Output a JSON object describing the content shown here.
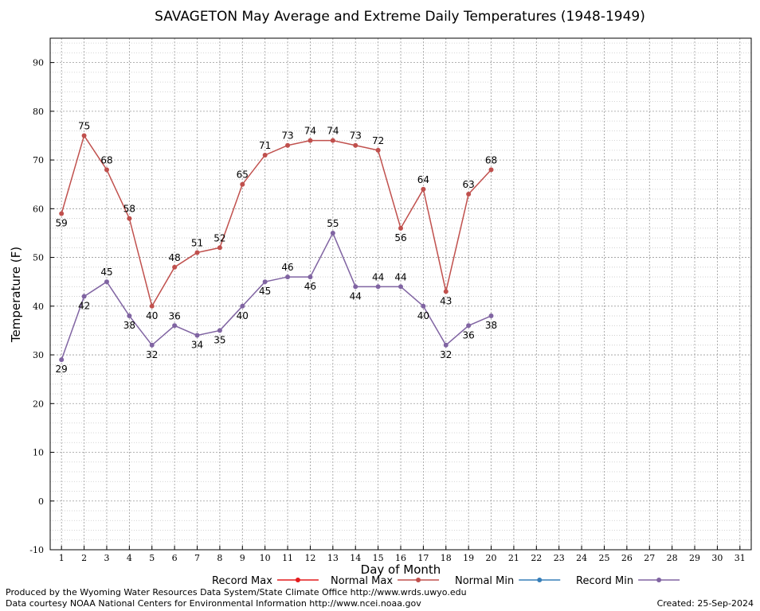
{
  "chart_data": {
    "type": "line",
    "title": "SAVAGETON May Average and Extreme Daily Temperatures (1948-1949)",
    "xlabel": "Day of Month",
    "ylabel": "Temperature (F)",
    "xlim": [
      0.5,
      31.5
    ],
    "ylim": [
      -10,
      95
    ],
    "x_ticks": [
      1,
      2,
      3,
      4,
      5,
      6,
      7,
      8,
      9,
      10,
      11,
      12,
      13,
      14,
      15,
      16,
      17,
      18,
      19,
      20,
      21,
      22,
      23,
      24,
      25,
      26,
      27,
      28,
      29,
      30,
      31
    ],
    "y_ticks": [
      -10,
      0,
      10,
      20,
      30,
      40,
      50,
      60,
      70,
      80,
      90
    ],
    "grid": true,
    "legend_position": "bottom",
    "series": [
      {
        "name": "Record Max",
        "color": "#e41a1c",
        "x": [],
        "values": []
      },
      {
        "name": "Normal Max",
        "color": "#c0504d",
        "x": [
          1,
          2,
          3,
          4,
          5,
          6,
          7,
          8,
          9,
          10,
          11,
          12,
          13,
          14,
          15,
          16,
          17,
          18,
          19,
          20
        ],
        "values": [
          59,
          75,
          68,
          58,
          40,
          48,
          51,
          52,
          65,
          71,
          73,
          74,
          74,
          73,
          72,
          56,
          64,
          43,
          63,
          68
        ],
        "labels": [
          "59",
          "75",
          "68",
          "58",
          "40",
          "48",
          "51",
          "52",
          "65",
          "71",
          "73",
          "74",
          "74",
          "73",
          "72",
          "56",
          "64",
          "43",
          "63",
          "68"
        ]
      },
      {
        "name": "Normal Min",
        "color": "#377eb8",
        "x": [],
        "values": []
      },
      {
        "name": "Record Min",
        "color": "#8064a2",
        "x": [
          1,
          2,
          3,
          4,
          5,
          6,
          7,
          8,
          9,
          10,
          11,
          12,
          13,
          14,
          15,
          16,
          17,
          18,
          19,
          20
        ],
        "values": [
          29,
          42,
          45,
          38,
          32,
          36,
          34,
          35,
          40,
          45,
          46,
          46,
          55,
          44,
          44,
          44,
          40,
          32,
          36,
          38
        ],
        "labels": [
          "29",
          "42",
          "45",
          "38",
          "32",
          "36",
          "34",
          "35",
          "40",
          "45",
          "46",
          "46",
          "55",
          "44",
          "44",
          "44",
          "40",
          "32",
          "36",
          "38"
        ]
      }
    ]
  },
  "footer": {
    "produced_by": "Produced by the Wyoming Water Resources Data System/State Climate Office http://www.wrds.uwyo.edu",
    "courtesy": "Data courtesy NOAA National Centers for Environmental Information http://www.ncei.noaa.gov",
    "created": "Created: 25-Sep-2024"
  }
}
